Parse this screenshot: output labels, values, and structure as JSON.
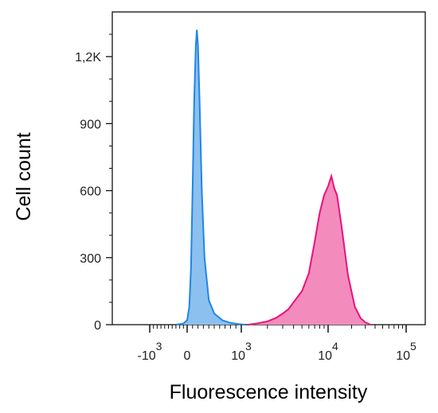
{
  "chart_data": {
    "type": "area",
    "title": "",
    "xlabel": "Fluorescence intensity",
    "ylabel": "Cell count",
    "x_scale": "logicle (biexponential)",
    "x_tick_labels": [
      {
        "base": "-10",
        "exp": "3",
        "value": -1000
      },
      {
        "base": "0",
        "exp": "",
        "value": 0
      },
      {
        "base": "10",
        "exp": "3",
        "value": 1000
      },
      {
        "base": "10",
        "exp": "4",
        "value": 10000
      },
      {
        "base": "10",
        "exp": "5",
        "value": 100000
      }
    ],
    "y_ticks": [
      {
        "label": "0",
        "value": 0
      },
      {
        "label": "300",
        "value": 300
      },
      {
        "label": "600",
        "value": 600
      },
      {
        "label": "900",
        "value": 900
      },
      {
        "label": "1,2K",
        "value": 1200
      }
    ],
    "ylim": [
      0,
      1400
    ],
    "grid": false,
    "series": [
      {
        "color": "#1f86e8",
        "fill": "#8cc0ee",
        "points": [
          [
            -300,
            0
          ],
          [
            -100,
            5
          ],
          [
            0,
            20
          ],
          [
            40,
            80
          ],
          [
            70,
            250
          ],
          [
            100,
            600
          ],
          [
            130,
            1000
          ],
          [
            160,
            1250
          ],
          [
            180,
            1320
          ],
          [
            200,
            1250
          ],
          [
            230,
            1000
          ],
          [
            270,
            600
          ],
          [
            320,
            300
          ],
          [
            400,
            110
          ],
          [
            500,
            50
          ],
          [
            650,
            20
          ],
          [
            800,
            8
          ],
          [
            950,
            3
          ],
          [
            1100,
            0
          ]
        ]
      },
      {
        "color": "#e8127c",
        "fill": "#f38bbd",
        "points": [
          [
            1200,
            0
          ],
          [
            1500,
            5
          ],
          [
            2000,
            15
          ],
          [
            2500,
            30
          ],
          [
            3000,
            50
          ],
          [
            3500,
            70
          ],
          [
            4000,
            100
          ],
          [
            5000,
            150
          ],
          [
            6000,
            230
          ],
          [
            7000,
            370
          ],
          [
            8000,
            500
          ],
          [
            9000,
            580
          ],
          [
            10000,
            620
          ],
          [
            11000,
            665
          ],
          [
            12000,
            610
          ],
          [
            13000,
            580
          ],
          [
            15000,
            430
          ],
          [
            18000,
            220
          ],
          [
            22000,
            80
          ],
          [
            26000,
            30
          ],
          [
            30000,
            10
          ],
          [
            35000,
            0
          ]
        ]
      }
    ]
  }
}
